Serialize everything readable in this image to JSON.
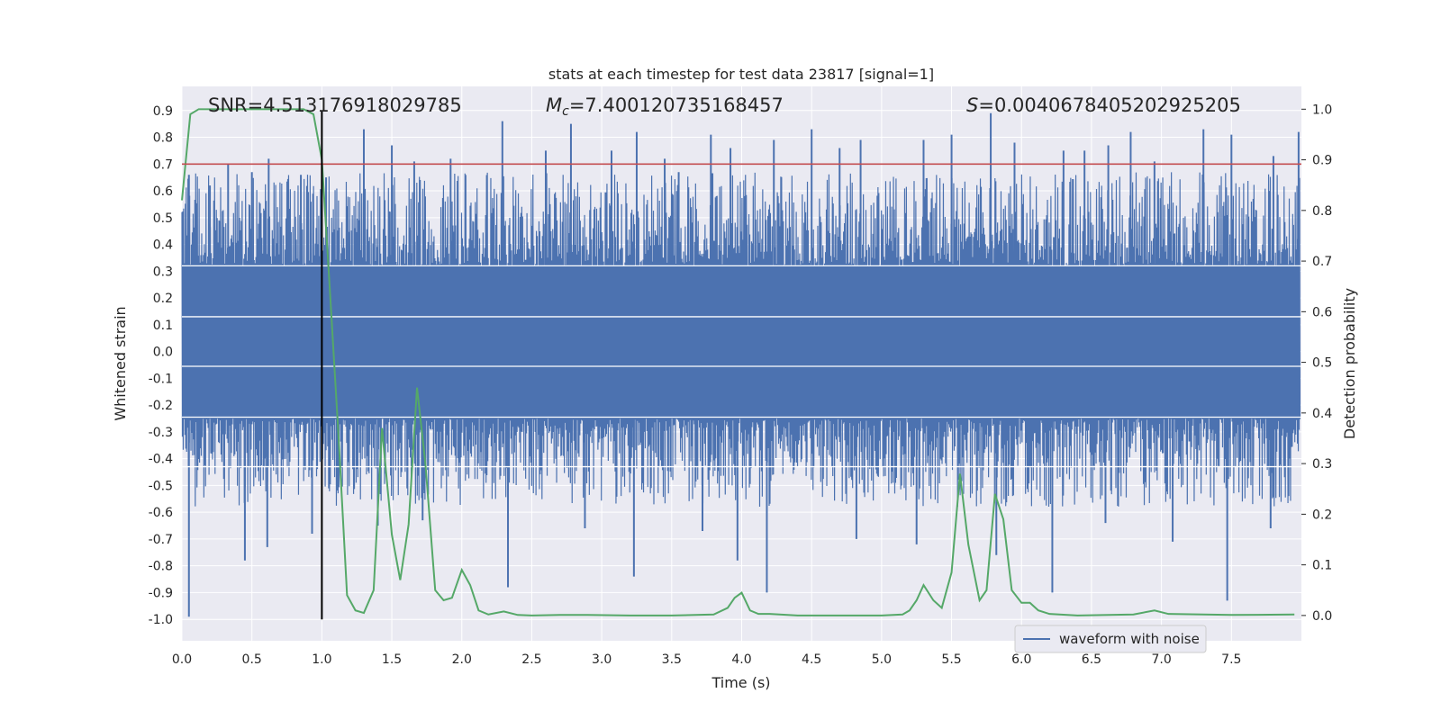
{
  "chart_data": {
    "type": "line",
    "title": "stats at each timestep for test data 23817 [signal=1]",
    "xlabel": "Time (s)",
    "ylabel_left": "Whitened strain",
    "ylabel_right": "Detection probability",
    "xlim": [
      0.0,
      8.0
    ],
    "ylim_left": [
      -1.08,
      0.99
    ],
    "ylim_right": [
      -0.05,
      1.045
    ],
    "x_ticks": [
      "0.0",
      "0.5",
      "1.0",
      "1.5",
      "2.0",
      "2.5",
      "3.0",
      "3.5",
      "4.0",
      "4.5",
      "5.0",
      "5.5",
      "6.0",
      "6.5",
      "7.0",
      "7.5"
    ],
    "y_left_ticks": [
      "0.9",
      "0.8",
      "0.7",
      "0.6",
      "0.5",
      "0.4",
      "0.3",
      "0.2",
      "0.1",
      "0.0",
      "-0.1",
      "-0.2",
      "-0.3",
      "-0.4",
      "-0.5",
      "-0.6",
      "-0.7",
      "-0.8",
      "-0.9",
      "-1.0"
    ],
    "y_right_ticks": [
      "1.0",
      "0.9",
      "0.8",
      "0.7",
      "0.6",
      "0.5",
      "0.4",
      "0.3",
      "0.2",
      "0.1",
      "0.0"
    ],
    "grid": true,
    "legend_position": "lower-right",
    "annotations": {
      "snr": "SNR=4.513176918029785",
      "mc_symbol": "M",
      "mc_sub": "c",
      "mc_value": "=7.400120735168457",
      "s_symbol": "S",
      "s_value": "=0.0040678405202925205"
    },
    "threshold": {
      "value": 0.7,
      "axis": "left",
      "color": "#c44e52"
    },
    "vline": {
      "x": 1.0,
      "color": "#000000"
    },
    "waveform": {
      "name": "waveform with noise",
      "color": "#4c72b0",
      "x_range": [
        0.0,
        7.99
      ],
      "dense_band": [
        -0.25,
        0.32
      ],
      "top_spikes": [
        [
          0.05,
          0.66
        ],
        [
          0.2,
          0.62
        ],
        [
          0.33,
          0.7
        ],
        [
          0.5,
          0.67
        ],
        [
          0.62,
          0.72
        ],
        [
          0.85,
          0.66
        ],
        [
          1.03,
          0.65
        ],
        [
          1.3,
          0.83
        ],
        [
          1.5,
          0.77
        ],
        [
          1.66,
          0.71
        ],
        [
          1.92,
          0.72
        ],
        [
          2.29,
          0.86
        ],
        [
          2.6,
          0.75
        ],
        [
          2.78,
          0.85
        ],
        [
          3.07,
          0.75
        ],
        [
          3.25,
          0.82
        ],
        [
          3.45,
          0.72
        ],
        [
          3.55,
          0.67
        ],
        [
          3.78,
          0.81
        ],
        [
          3.92,
          0.76
        ],
        [
          4.23,
          0.79
        ],
        [
          4.5,
          0.83
        ],
        [
          4.7,
          0.76
        ],
        [
          4.85,
          0.79
        ],
        [
          5.3,
          0.79
        ],
        [
          5.5,
          0.81
        ],
        [
          5.78,
          0.89
        ],
        [
          5.95,
          0.78
        ],
        [
          6.3,
          0.75
        ],
        [
          6.45,
          0.75
        ],
        [
          6.62,
          0.77
        ],
        [
          6.78,
          0.82
        ],
        [
          6.95,
          0.71
        ],
        [
          7.3,
          0.83
        ],
        [
          7.5,
          0.81
        ],
        [
          7.8,
          0.73
        ],
        [
          7.98,
          0.82
        ]
      ],
      "bottom_spikes": [
        [
          0.05,
          -0.99
        ],
        [
          0.45,
          -0.78
        ],
        [
          0.61,
          -0.73
        ],
        [
          0.93,
          -0.68
        ],
        [
          1.4,
          -0.65
        ],
        [
          1.72,
          -0.63
        ],
        [
          2.33,
          -0.88
        ],
        [
          2.88,
          -0.66
        ],
        [
          3.23,
          -0.84
        ],
        [
          3.72,
          -0.67
        ],
        [
          3.97,
          -0.78
        ],
        [
          4.18,
          -0.9
        ],
        [
          4.82,
          -0.7
        ],
        [
          5.25,
          -0.72
        ],
        [
          5.82,
          -0.76
        ],
        [
          6.22,
          -0.9
        ],
        [
          6.6,
          -0.64
        ],
        [
          7.08,
          -0.71
        ],
        [
          7.47,
          -0.93
        ],
        [
          7.78,
          -0.66
        ]
      ]
    },
    "probability": {
      "color": "#55a868",
      "x": [
        0.0,
        0.06,
        0.12,
        0.2,
        0.3,
        0.4,
        0.5,
        0.6,
        0.7,
        0.8,
        0.87,
        0.94,
        1.0,
        1.06,
        1.12,
        1.18,
        1.24,
        1.3,
        1.37,
        1.43,
        1.5,
        1.56,
        1.62,
        1.68,
        1.74,
        1.81,
        1.87,
        1.93,
        2.0,
        2.06,
        2.12,
        2.19,
        2.3,
        2.4,
        2.5,
        2.7,
        2.9,
        3.2,
        3.5,
        3.8,
        3.9,
        3.95,
        4.0,
        4.06,
        4.12,
        4.2,
        4.4,
        4.7,
        5.0,
        5.15,
        5.2,
        5.25,
        5.3,
        5.37,
        5.43,
        5.5,
        5.56,
        5.62,
        5.7,
        5.75,
        5.81,
        5.87,
        5.93,
        6.0,
        6.06,
        6.12,
        6.2,
        6.4,
        6.8,
        6.95,
        7.05,
        7.5,
        7.95
      ],
      "y": [
        0.82,
        0.99,
        1.0,
        1.0,
        1.0,
        1.0,
        1.0,
        1.0,
        1.0,
        1.0,
        1.0,
        0.99,
        0.9,
        0.63,
        0.35,
        0.04,
        0.01,
        0.005,
        0.05,
        0.37,
        0.16,
        0.07,
        0.18,
        0.45,
        0.3,
        0.05,
        0.03,
        0.035,
        0.09,
        0.06,
        0.01,
        0.002,
        0.008,
        0.001,
        0.0,
        0.001,
        0.001,
        0.0,
        0.0,
        0.002,
        0.015,
        0.035,
        0.045,
        0.01,
        0.003,
        0.003,
        0.0,
        0.0,
        0.0,
        0.002,
        0.01,
        0.03,
        0.06,
        0.03,
        0.015,
        0.085,
        0.28,
        0.14,
        0.03,
        0.05,
        0.24,
        0.19,
        0.05,
        0.025,
        0.025,
        0.01,
        0.003,
        0.0,
        0.002,
        0.01,
        0.003,
        0.001,
        0.002
      ]
    }
  }
}
